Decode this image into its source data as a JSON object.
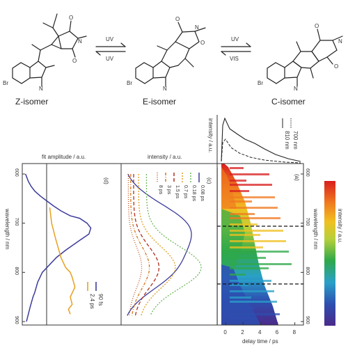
{
  "scheme": {
    "isomers": [
      "Z-isomer",
      "E-isomer",
      "C-isomer"
    ],
    "arrow1": {
      "forward": "UV",
      "back": "UV"
    },
    "arrow2": {
      "forward": "UV",
      "back": "VIS"
    },
    "atom_labels": {
      "br": "Br",
      "n": "N",
      "o": "O"
    }
  },
  "panels": {
    "d": {
      "letter": "(d)",
      "title": "fit amplitude / a.u."
    },
    "c": {
      "letter": "(c)",
      "title": "intensity / a.u."
    },
    "a": {
      "letter": "(a)"
    },
    "b": {
      "title": "intensity / a.u."
    },
    "colorbar_label": "intensity / a.u."
  },
  "chart_data": [
    {
      "type": "line",
      "panel": "d",
      "title": "fit amplitude / a.u.",
      "ylabel": "wavelength / nm",
      "ylim": [
        600,
        900
      ],
      "yticks": [
        600,
        700,
        800,
        900
      ],
      "series": [
        {
          "name": "90 fs",
          "color": "#3b3b9a",
          "x": [
            0.02,
            0.05,
            0.08,
            0.12,
            0.18,
            0.25,
            0.32,
            0.4,
            0.5,
            0.6,
            0.68,
            0.72,
            0.7,
            0.6,
            0.45,
            0.35,
            0.25,
            0.2,
            0.15,
            0.12,
            0.1,
            0.07,
            0.05,
            0.03
          ],
          "y": [
            600,
            615,
            625,
            635,
            645,
            655,
            665,
            675,
            685,
            690,
            700,
            710,
            722,
            735,
            755,
            770,
            790,
            800,
            820,
            840,
            850,
            870,
            885,
            900
          ]
        },
        {
          "name": "2.4 ps",
          "color": "#e8a020",
          "x": [
            0.28,
            0.3,
            0.34,
            0.4,
            0.45,
            0.5,
            0.52,
            0.55,
            0.5,
            0.52,
            0.48,
            0.5
          ],
          "y": [
            668,
            700,
            730,
            770,
            790,
            800,
            810,
            830,
            850,
            865,
            875,
            885
          ]
        }
      ]
    },
    {
      "type": "line",
      "panel": "c",
      "title": "intensity / a.u.",
      "ylim": [
        600,
        900
      ],
      "series": [
        {
          "name": "0.08 ps",
          "color": "#3b3b9a"
        },
        {
          "name": "0.18 ps",
          "color": "#6fb85a"
        },
        {
          "name": "0.7 ps",
          "color": "#e0a020"
        },
        {
          "name": "1.5 ps",
          "color": "#b03020"
        },
        {
          "name": "3 ps",
          "color": "#d07a20"
        },
        {
          "name": "8 ps",
          "color": "#c05020"
        }
      ]
    },
    {
      "type": "heatmap",
      "panel": "a",
      "xlabel": "delay time / ps",
      "ylabel": "wavelength / nm",
      "xlim": [
        -1,
        9
      ],
      "xticks": [
        0,
        2,
        4,
        6,
        8
      ],
      "ylim": [
        600,
        900
      ],
      "yticks": [
        600,
        700,
        800,
        900
      ],
      "dashed_lines_nm": [
        700,
        810
      ]
    },
    {
      "type": "line",
      "panel": "b",
      "ylabel": "intensity / a.u.",
      "series": [
        {
          "name": "700 nm",
          "style": "dotted"
        },
        {
          "name": "810 nm",
          "style": "solid"
        }
      ]
    }
  ]
}
